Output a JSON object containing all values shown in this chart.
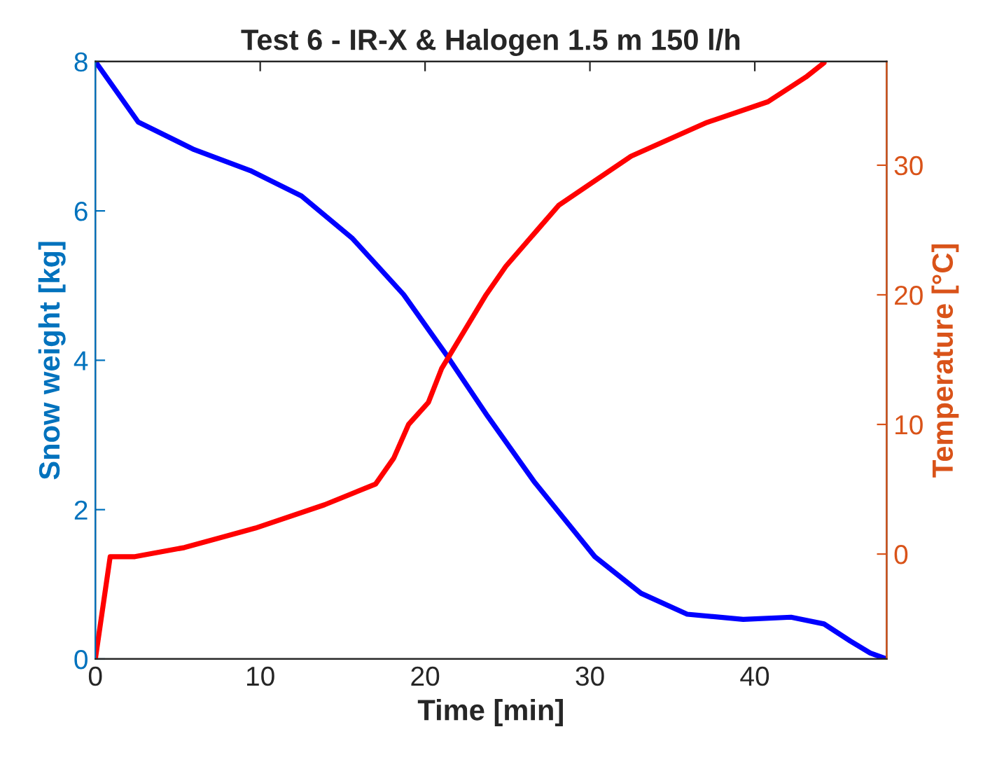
{
  "chart_data": {
    "type": "line",
    "title": "Test 6 - IR-X & Halogen 1.5 m 150 l/h",
    "xlabel": "Time [min]",
    "ylabel": "Snow weight [kg]",
    "y2label": "Temperature [°C]",
    "xlim": [
      0,
      48
    ],
    "xticks": [
      0,
      10,
      20,
      30,
      40
    ],
    "ylim": [
      0,
      8
    ],
    "yticks": [
      0,
      2,
      4,
      6,
      8
    ],
    "y2lim": [
      -8.1,
      38
    ],
    "y2ticks": [
      0,
      10,
      20,
      30
    ],
    "grid": false,
    "series": [
      {
        "color": "#0000ff",
        "x": [
          0,
          2.6,
          6.0,
          9.4,
          12.5,
          15.6,
          18.7,
          21.3,
          23.8,
          26.6,
          30.3,
          33.1,
          35.9,
          39.3,
          42.2,
          44.2,
          45.8,
          47,
          48
        ],
        "values": [
          8,
          7.19,
          6.82,
          6.54,
          6.2,
          5.63,
          4.88,
          4.07,
          3.25,
          2.38,
          1.37,
          0.88,
          0.6,
          0.53,
          0.56,
          0.47,
          0.24,
          0.08,
          0
        ]
      },
      {
        "color": "#ff0000",
        "axis": "y2",
        "x": [
          0,
          0.9,
          2.4,
          5.4,
          9.7,
          13.9,
          17.0,
          18.1,
          19.0,
          20.2,
          21.0,
          23.7,
          24.9,
          28.1,
          32.5,
          37.1,
          40.8,
          43.1,
          44.2
        ],
        "values": [
          -8.1,
          -0.2,
          -0.2,
          0.5,
          2.0,
          3.8,
          5.4,
          7.4,
          10.0,
          11.7,
          14.3,
          20.0,
          22.2,
          26.9,
          30.7,
          33.3,
          34.9,
          36.8,
          37.9
        ]
      }
    ]
  }
}
